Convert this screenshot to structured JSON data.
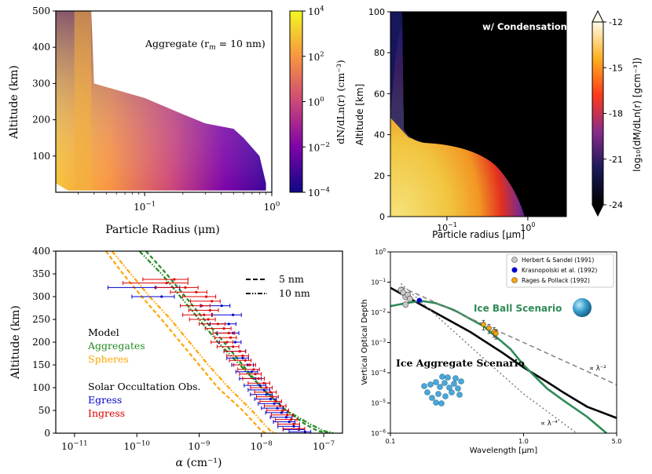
{
  "chart_data": [
    {
      "type": "heatmap",
      "panel": "top-left",
      "title": "",
      "annotation": "Aggregate (r",
      "annotation_sub": "m",
      "annotation_tail": " = 10 nm)",
      "xlabel": "Particle Radius (μm)",
      "ylabel": "Altitude (km)",
      "xscale": "log",
      "xlim": [
        0.02,
        1.0
      ],
      "ylim": [
        0,
        500
      ],
      "xticks": [
        {
          "v": 0.1,
          "b": "10",
          "e": "−1"
        },
        {
          "v": 1.0,
          "b": "10",
          "e": "0"
        }
      ],
      "yticks": [
        100,
        200,
        300,
        400,
        500
      ],
      "colorbar": {
        "label": "dN/dLn(r) (cm⁻³)",
        "scale": "log",
        "ticks": [
          {
            "b": "10",
            "e": "4"
          },
          {
            "b": "10",
            "e": "2"
          },
          {
            "b": "10",
            "e": "0"
          },
          {
            "b": "10",
            "e": "−2"
          },
          {
            "b": "10",
            "e": "−4"
          }
        ],
        "range": [
          0.0001,
          10000
        ],
        "cmap": "plasma"
      },
      "upper_edge": [
        [
          0.038,
          500
        ],
        [
          0.04,
          300
        ],
        [
          0.1,
          260
        ],
        [
          0.2,
          215
        ],
        [
          0.3,
          190
        ],
        [
          0.5,
          175
        ],
        [
          0.6,
          150
        ],
        [
          0.8,
          100
        ],
        [
          0.9,
          25
        ]
      ],
      "lower_edge": [
        [
          0.02,
          25
        ],
        [
          0.025,
          5
        ],
        [
          0.9,
          5
        ]
      ]
    },
    {
      "type": "heatmap",
      "panel": "top-right",
      "title": "w/ Condensation",
      "xlabel": "Particle radius [μm]",
      "ylabel": "Altitude [km]",
      "xscale": "log",
      "xlim": [
        0.02,
        3.0
      ],
      "ylim": [
        0,
        100
      ],
      "xticks": [
        {
          "v": 0.1,
          "b": "10",
          "e": "−1"
        },
        {
          "v": 1.0,
          "b": "10",
          "e": "0"
        }
      ],
      "yticks": [
        0,
        20,
        40,
        60,
        80,
        100
      ],
      "colorbar": {
        "label": "log₁₀(dM/dLn(r) [gcm⁻³])",
        "ticks": [
          "-12",
          "-15",
          "-18",
          "-21",
          "-24"
        ],
        "range": [
          -24,
          -12
        ],
        "extend": "both"
      }
    },
    {
      "type": "line",
      "panel": "bottom-left",
      "xlabel": "α (cm⁻¹)",
      "ylabel": "Altitude (km)",
      "xscale": "log",
      "xlim": [
        5e-12,
        2e-07
      ],
      "ylim": [
        0,
        400
      ],
      "xticks": [
        {
          "v": 1e-11,
          "b": "10",
          "e": "−11"
        },
        {
          "v": 1e-10,
          "b": "10",
          "e": "−10"
        },
        {
          "v": 1e-09,
          "b": "10",
          "e": "−9"
        },
        {
          "v": 1e-08,
          "b": "10",
          "e": "−8"
        },
        {
          "v": 1e-07,
          "b": "10",
          "e": "−7"
        }
      ],
      "yticks": [
        0,
        50,
        100,
        150,
        200,
        250,
        300,
        350,
        400
      ],
      "legend": [
        {
          "label": "5 nm",
          "style": "dashed"
        },
        {
          "label": "10 nm",
          "style": "dashdotdot"
        }
      ],
      "text_legend": {
        "model_title": "Model",
        "aggregates": "Aggregates",
        "spheres": "Spheres",
        "obs_title": "Solar Occultation Obs.",
        "egress": "Egress",
        "ingress": "Ingress"
      },
      "colors": {
        "aggregates": "#228b22",
        "spheres": "#ffa500",
        "egress": "#0000cd",
        "ingress": "#dd0000"
      },
      "series": [
        {
          "name": "Aggregates 5 nm",
          "color": "#228b22",
          "dash": "5,3",
          "points": [
            [
              1.4e-10,
              400
            ],
            [
              3e-10,
              350
            ],
            [
              6e-10,
              300
            ],
            [
              1.2e-09,
              250
            ],
            [
              2.5e-09,
              200
            ],
            [
              5e-09,
              150
            ],
            [
              1e-08,
              100
            ],
            [
              2.5e-08,
              50
            ],
            [
              5e-08,
              20
            ],
            [
              8e-08,
              5
            ],
            [
              1.2e-07,
              0
            ]
          ]
        },
        {
          "name": "Aggregates 10 nm",
          "color": "#228b22",
          "dash": "6,2,1.5,2,1.5,2",
          "points": [
            [
              1.1e-10,
              400
            ],
            [
              2.5e-10,
              350
            ],
            [
              5e-10,
              300
            ],
            [
              1e-09,
              250
            ],
            [
              2e-09,
              200
            ],
            [
              4.5e-09,
              150
            ],
            [
              1e-08,
              100
            ],
            [
              2.5e-08,
              50
            ],
            [
              6e-08,
              20
            ],
            [
              1e-07,
              5
            ],
            [
              1.5e-07,
              0
            ]
          ]
        },
        {
          "name": "Spheres 5 nm",
          "color": "#ffa500",
          "dash": "5,3",
          "points": [
            [
              3.2e-11,
              400
            ],
            [
              6e-11,
              350
            ],
            [
              1.2e-10,
              300
            ],
            [
              2.5e-10,
              250
            ],
            [
              5e-10,
              200
            ],
            [
              1e-09,
              150
            ],
            [
              2e-09,
              100
            ],
            [
              5e-09,
              50
            ],
            [
              8e-09,
              20
            ],
            [
              1e-08,
              5
            ],
            [
              1.2e-08,
              0
            ]
          ]
        },
        {
          "name": "Spheres 10 nm",
          "color": "#ffa500",
          "dash": "6,2,1.5,2,1.5,2",
          "points": [
            [
              4e-11,
              400
            ],
            [
              8e-11,
              350
            ],
            [
              1.6e-10,
              300
            ],
            [
              3.5e-10,
              250
            ],
            [
              7e-10,
              200
            ],
            [
              1.4e-09,
              150
            ],
            [
              3e-09,
              100
            ],
            [
              7e-09,
              50
            ],
            [
              1.1e-08,
              20
            ],
            [
              1.4e-08,
              5
            ],
            [
              1.7e-08,
              0
            ]
          ]
        }
      ],
      "ingress_obs": [
        [
          4e-10,
          338,
          0.55
        ],
        [
          3e-10,
          330,
          1.0
        ],
        [
          6e-10,
          320,
          0.5
        ],
        [
          9e-10,
          310,
          0.4
        ],
        [
          1.3e-09,
          300,
          0.35
        ],
        [
          1.6e-09,
          290,
          0.3
        ],
        [
          1.1e-09,
          280,
          0.3
        ],
        [
          1.5e-09,
          270,
          0.3
        ],
        [
          1.2e-09,
          260,
          0.3
        ],
        [
          1.4e-09,
          250,
          0.25
        ],
        [
          2e-09,
          240,
          0.25
        ],
        [
          2.5e-09,
          230,
          0.25
        ],
        [
          3e-09,
          220,
          0.2
        ],
        [
          3.2e-09,
          210,
          0.2
        ],
        [
          2.8e-09,
          200,
          0.2
        ],
        [
          3.5e-09,
          190,
          0.2
        ],
        [
          4.5e-09,
          180,
          0.2
        ],
        [
          5e-09,
          170,
          0.2
        ],
        [
          5.5e-09,
          160,
          0.2
        ],
        [
          6.5e-09,
          150,
          0.2
        ],
        [
          7.5e-09,
          140,
          0.2
        ],
        [
          8e-09,
          130,
          0.2
        ],
        [
          9e-09,
          120,
          0.2
        ],
        [
          1.1e-08,
          110,
          0.2
        ],
        [
          1.2e-08,
          100,
          0.2
        ],
        [
          1.4e-08,
          90,
          0.2
        ],
        [
          1.5e-08,
          80,
          0.2
        ],
        [
          1.7e-08,
          70,
          0.2
        ],
        [
          2e-08,
          60,
          0.2
        ],
        [
          2.2e-08,
          50,
          0.2
        ],
        [
          2.6e-08,
          40,
          0.2
        ],
        [
          3e-08,
          30,
          0.2
        ],
        [
          3.3e-08,
          20,
          0.2
        ],
        [
          4e-08,
          10,
          0.2
        ]
      ],
      "egress_obs": [
        [
          2e-10,
          320,
          1.2
        ],
        [
          2.5e-10,
          300,
          0.5
        ],
        [
          2.3e-09,
          280,
          0.3
        ],
        [
          3.5e-09,
          260,
          0.3
        ],
        [
          3e-09,
          240,
          0.25
        ],
        [
          3.5e-09,
          220,
          0.2
        ],
        [
          3.8e-09,
          200,
          0.2
        ],
        [
          4.5e-09,
          180,
          0.2
        ],
        [
          5e-09,
          165,
          0.2
        ],
        [
          6e-09,
          150,
          0.2
        ],
        [
          7e-09,
          135,
          0.2
        ],
        [
          8e-09,
          120,
          0.2
        ],
        [
          9.5e-09,
          105,
          0.2
        ],
        [
          1.1e-08,
          95,
          0.2
        ],
        [
          1.2e-08,
          85,
          0.2
        ],
        [
          1.4e-08,
          75,
          0.2
        ],
        [
          1.6e-08,
          65,
          0.2
        ],
        [
          1.8e-08,
          55,
          0.2
        ],
        [
          2.1e-08,
          45,
          0.2
        ],
        [
          2.5e-08,
          35,
          0.2
        ],
        [
          2.8e-08,
          25,
          0.2
        ],
        [
          3.3e-08,
          15,
          0.2
        ],
        [
          4e-08,
          8,
          0.2
        ],
        [
          5e-08,
          3,
          0.2
        ]
      ]
    },
    {
      "type": "line",
      "panel": "bottom-right",
      "xlabel": "Wavelength [μm]",
      "ylabel": "Vertical Optical Depth",
      "xscale": "log",
      "yscale": "log",
      "xlim": [
        0.1,
        5.0
      ],
      "ylim": [
        1e-06,
        1
      ],
      "xticks": [
        {
          "v": 0.1,
          "t": "0.1"
        },
        {
          "v": 1.0,
          "t": "1.0"
        },
        {
          "v": 5.0,
          "t": "5.0"
        }
      ],
      "yticks": [
        {
          "v": 1e-06,
          "b": "10",
          "e": "−6"
        },
        {
          "v": 1e-05,
          "b": "10",
          "e": "−5"
        },
        {
          "v": 0.0001,
          "b": "10",
          "e": "−4"
        },
        {
          "v": 0.001,
          "b": "10",
          "e": "−3"
        },
        {
          "v": 0.01,
          "b": "10",
          "e": "−2"
        },
        {
          "v": 0.1,
          "b": "10",
          "e": "−1"
        },
        {
          "v": 1,
          "b": "10",
          "e": "0"
        }
      ],
      "legend": [
        {
          "label": "Herbert & Sandel (1991)",
          "color": "#c8c8c8"
        },
        {
          "label": "Krasnopolski et al. (1992)",
          "color": "#0000cd"
        },
        {
          "label": "Rages & Pollack (1992)",
          "color": "#ffa500"
        }
      ],
      "scenario_ball": "Ice Ball Scenario",
      "scenario_aggregate": "Ice Aggregate Scenario",
      "lambda_m2": "∝ λ⁻²",
      "lambda_m4": "∝ λ⁻⁴",
      "colors": {
        "aggregate_line": "#000000",
        "ball_line": "#2e8b57",
        "ball_sphere": "#3aa0d0"
      },
      "series": [
        {
          "name": "Ice Aggregate",
          "color": "#000000",
          "points": [
            [
              0.1,
              0.065
            ],
            [
              0.2,
              0.012
            ],
            [
              0.4,
              0.0022
            ],
            [
              0.7,
              0.00045
            ],
            [
              1.0,
              0.00015
            ],
            [
              1.5,
              5e-05
            ],
            [
              2.0,
              2.2e-05
            ],
            [
              3.0,
              7.5e-06
            ],
            [
              5.0,
              3.2e-06
            ]
          ]
        },
        {
          "name": "Ice Ball",
          "color": "#2e8b57",
          "points": [
            [
              0.1,
              0.016
            ],
            [
              0.13,
              0.02
            ],
            [
              0.17,
              0.024
            ],
            [
              0.22,
              0.02
            ],
            [
              0.3,
              0.012
            ],
            [
              0.5,
              0.0035
            ],
            [
              0.8,
              0.0006
            ],
            [
              1.0,
              0.00018
            ],
            [
              1.5,
              3e-05
            ],
            [
              2.0,
              1.2e-05
            ],
            [
              3.0,
              3.5e-06
            ],
            [
              4.2,
              1e-06
            ]
          ]
        },
        {
          "name": "lambda^-2",
          "color": "#808080",
          "dash": "6,4",
          "points": [
            [
              0.12,
              0.07
            ],
            [
              1.0,
              0.001
            ],
            [
              5.0,
              4e-05
            ]
          ]
        },
        {
          "name": "lambda^-4",
          "color": "#808080",
          "dash": "2,3",
          "points": [
            [
              0.12,
              0.09
            ],
            [
              0.5,
              0.0003
            ],
            [
              1.0,
              2e-05
            ],
            [
              2.5,
              1e-06
            ]
          ]
        }
      ],
      "herbert_sandel": [
        [
          0.12,
          0.055
        ],
        [
          0.125,
          0.045
        ],
        [
          0.13,
          0.032
        ],
        [
          0.135,
          0.038
        ],
        [
          0.14,
          0.028
        ],
        [
          0.13,
          0.018
        ]
      ],
      "krasnopolski": [
        [
          0.165,
          0.025
        ]
      ],
      "rages_pollack": [
        [
          0.5,
          0.004,
          0.0014
        ],
        [
          0.55,
          0.003,
          0.001
        ],
        [
          0.6,
          0.0023,
          0.0008
        ],
        [
          0.62,
          0.002,
          0.0007
        ]
      ]
    }
  ]
}
